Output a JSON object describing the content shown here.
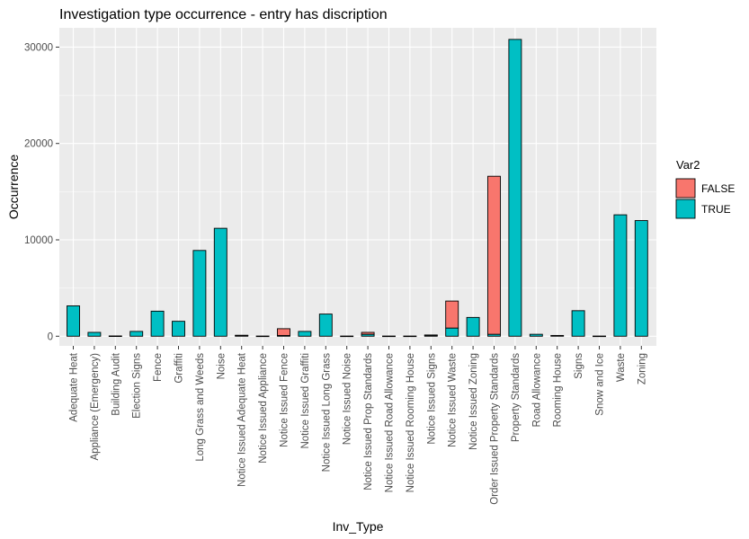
{
  "chart_data": {
    "type": "bar",
    "stacked": true,
    "title": "Investigation type occurrence - entry has discription",
    "xlabel": "Inv_Type",
    "ylabel": "Occurrence",
    "ylim": [
      -1000,
      32000
    ],
    "yticks": [
      0,
      10000,
      20000,
      30000
    ],
    "grid": true,
    "legend": {
      "title": "Var2",
      "position": "right"
    },
    "categories": [
      "Adequate Heat",
      "Appliance (Emergency)",
      "Building Audit",
      "Election Signs",
      "Fence",
      "Graffiti",
      "Long Grass and Weeds",
      "Noise",
      "Notice Issued Adequate Heat",
      "Notice Issued Appliance",
      "Notice Issued Fence",
      "Notice Issued Graffiti",
      "Notice Issued Long Grass",
      "Notice Issued Noise",
      "Notice Issued Prop Standards",
      "Notice Issued Road Allowance",
      "Notice Issued Rooming House",
      "Notice Issued Signs",
      "Notice Issued Waste",
      "Notice Issued Zoning",
      "Order Issued Property Standards",
      "Property Standards",
      "Road Allowance",
      "Rooming House",
      "Signs",
      "Snow and Ice",
      "Waste",
      "Zoning"
    ],
    "series": [
      {
        "name": "FALSE",
        "color": "#F8766D",
        "values": [
          0,
          0,
          0,
          0,
          0,
          0,
          0,
          0,
          20,
          0,
          700,
          0,
          0,
          0,
          200,
          0,
          0,
          30,
          2800,
          0,
          16400,
          0,
          0,
          0,
          0,
          0,
          0,
          0
        ]
      },
      {
        "name": "TRUE",
        "color": "#00BFC4",
        "values": [
          3150,
          400,
          30,
          500,
          2600,
          1550,
          8900,
          11200,
          80,
          20,
          80,
          500,
          2300,
          20,
          200,
          20,
          20,
          100,
          850,
          1950,
          200,
          30800,
          200,
          80,
          2650,
          20,
          12600,
          12000
        ]
      }
    ]
  }
}
